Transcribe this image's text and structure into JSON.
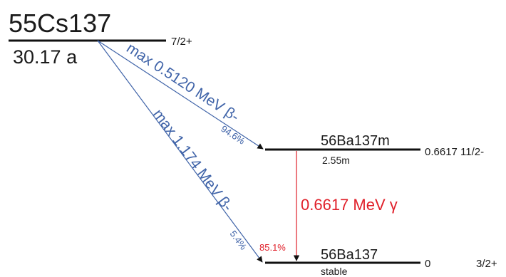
{
  "parent": {
    "nuclide": "55Cs137",
    "half_life": "30.17 a",
    "spin_parity": "7/2+"
  },
  "metastable": {
    "nuclide": "56Ba137m",
    "half_life": "2.55m",
    "energy_spin": "0.6617 11/2-"
  },
  "ground": {
    "nuclide": "56Ba137",
    "state": "stable",
    "energy": "0",
    "spin_parity": "3/2+"
  },
  "beta_transitions": [
    {
      "label": "max 0.5120 MeV β-",
      "branching": "94.6%"
    },
    {
      "label": "max 1.174 MeV β-",
      "branching": "5.4%"
    }
  ],
  "gamma_transition": {
    "label": "0.6617 MeV γ",
    "intensity": "85.1%"
  },
  "colors": {
    "level_line": "#111111",
    "beta": "#3f63a8",
    "gamma": "#e0202a"
  }
}
